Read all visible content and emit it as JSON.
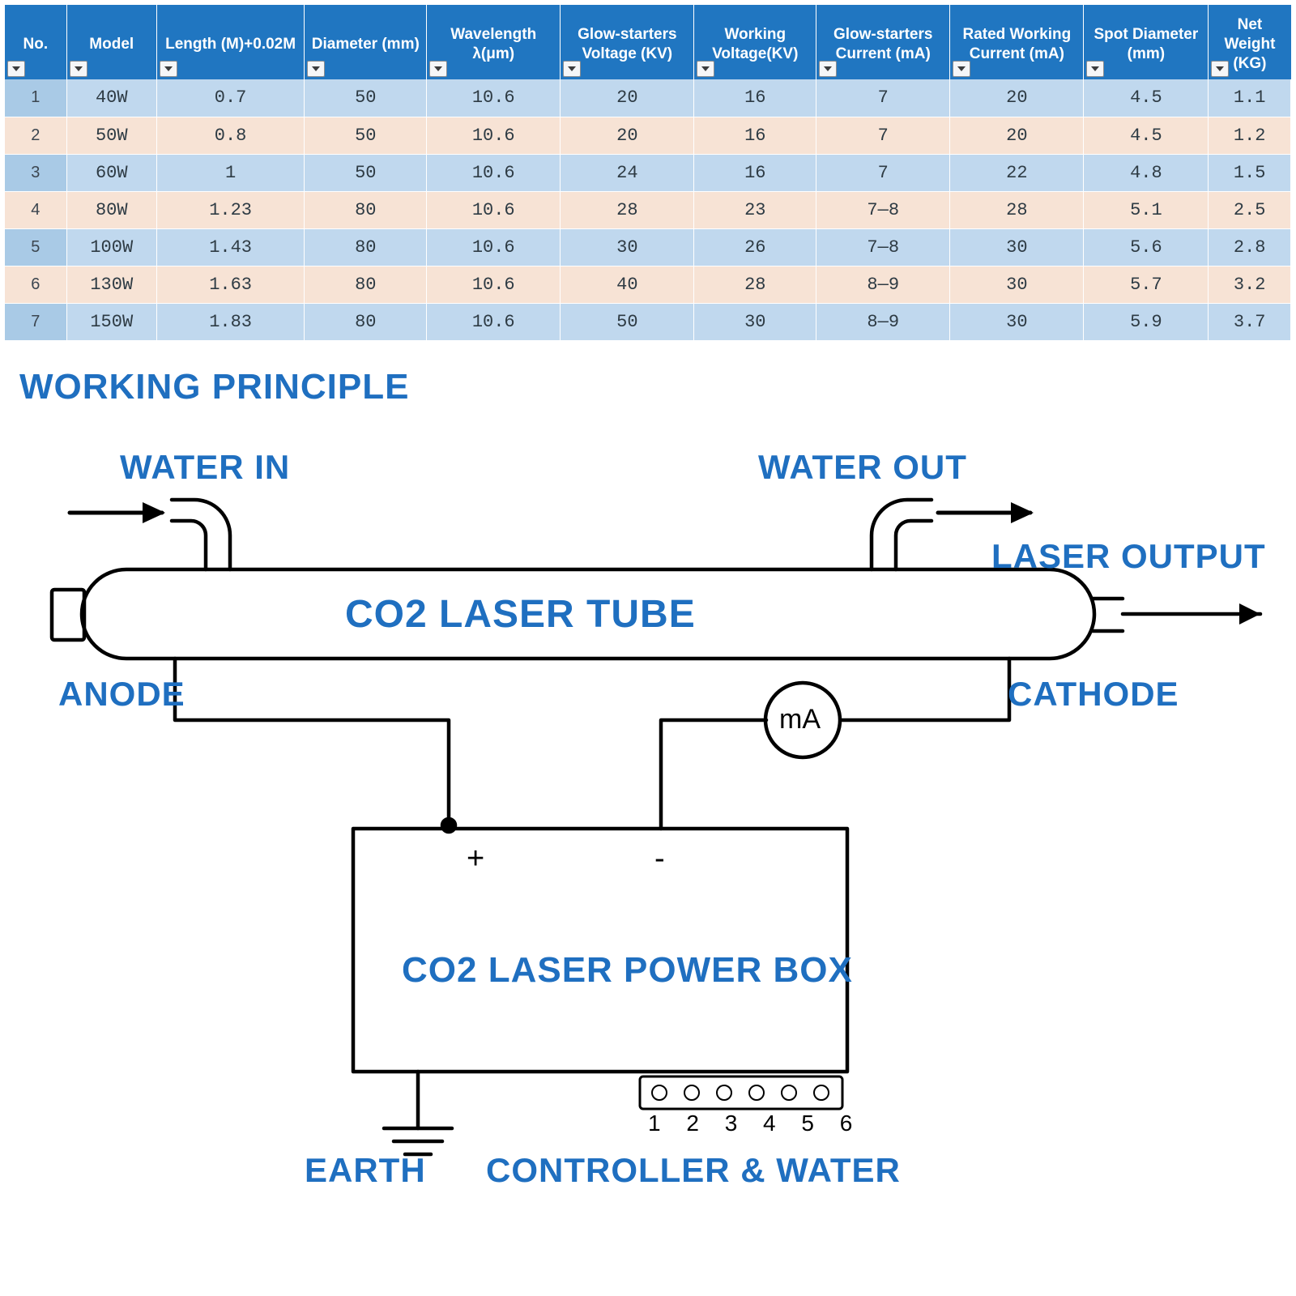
{
  "table": {
    "columns": [
      {
        "key": "no",
        "label": "No."
      },
      {
        "key": "model",
        "label": "Model"
      },
      {
        "key": "length",
        "label": "Length (M)+0.02M"
      },
      {
        "key": "diameter",
        "label": "Diameter (mm)"
      },
      {
        "key": "wavelength",
        "label": "Wavelength λ(μm)"
      },
      {
        "key": "glowv",
        "label": "Glow-starters Voltage (KV)"
      },
      {
        "key": "workv",
        "label": "Working Voltage(KV)"
      },
      {
        "key": "glowc",
        "label": "Glow-starters Current (mA)"
      },
      {
        "key": "ratedc",
        "label": "Rated Working Current (mA)"
      },
      {
        "key": "spot",
        "label": "Spot Diameter (mm)"
      },
      {
        "key": "weight",
        "label": "Net Weight (KG)"
      }
    ],
    "col_widths_pct": [
      4.8,
      7.0,
      11.5,
      9.5,
      10.4,
      10.4,
      9.5,
      10.4,
      10.4,
      9.7,
      6.4
    ],
    "header_bg": "#2076c1",
    "header_fg": "#ffffff",
    "row_blue_bg": "#c0d8ee",
    "row_blue_idx_bg": "#a9cae6",
    "row_pink_bg": "#f7e3d5",
    "rows": [
      {
        "no": "1",
        "model": "40W",
        "length": "0.7",
        "diameter": "50",
        "wavelength": "10.6",
        "glowv": "20",
        "workv": "16",
        "glowc": "7",
        "ratedc": "20",
        "spot": "4.5",
        "weight": "1.1"
      },
      {
        "no": "2",
        "model": "50W",
        "length": "0.8",
        "diameter": "50",
        "wavelength": "10.6",
        "glowv": "20",
        "workv": "16",
        "glowc": "7",
        "ratedc": "20",
        "spot": "4.5",
        "weight": "1.2"
      },
      {
        "no": "3",
        "model": "60W",
        "length": "1",
        "diameter": "50",
        "wavelength": "10.6",
        "glowv": "24",
        "workv": "16",
        "glowc": "7",
        "ratedc": "22",
        "spot": "4.8",
        "weight": "1.5"
      },
      {
        "no": "4",
        "model": "80W",
        "length": "1.23",
        "diameter": "80",
        "wavelength": "10.6",
        "glowv": "28",
        "workv": "23",
        "glowc": "7—8",
        "ratedc": "28",
        "spot": "5.1",
        "weight": "2.5"
      },
      {
        "no": "5",
        "model": "100W",
        "length": "1.43",
        "diameter": "80",
        "wavelength": "10.6",
        "glowv": "30",
        "workv": "26",
        "glowc": "7—8",
        "ratedc": "30",
        "spot": "5.6",
        "weight": "2.8"
      },
      {
        "no": "6",
        "model": "130W",
        "length": "1.63",
        "diameter": "80",
        "wavelength": "10.6",
        "glowv": "40",
        "workv": "28",
        "glowc": "8—9",
        "ratedc": "30",
        "spot": "5.7",
        "weight": "3.2"
      },
      {
        "no": "7",
        "model": "150W",
        "length": "1.83",
        "diameter": "80",
        "wavelength": "10.6",
        "glowv": "50",
        "workv": "30",
        "glowc": "8—9",
        "ratedc": "30",
        "spot": "5.9",
        "weight": "3.7"
      }
    ]
  },
  "section_title": "WORKING PRINCIPLE",
  "diagram": {
    "label_color": "#1f6fc0",
    "stroke": "#000000",
    "stroke_width": 4.5,
    "labels": {
      "water_in": "WATER IN",
      "water_out": "WATER OUT",
      "laser_output": "LASER OUTPUT",
      "tube": "CO2 LASER TUBE",
      "anode": "ANODE",
      "cathode": "CATHODE",
      "ma": "mA",
      "powerbox": "CO2 LASER POWER BOX",
      "earth": "EARTH",
      "controller": "CONTROLLER & WATER",
      "plus": "+",
      "minus": "-",
      "pins": "1 2 3 4 5 6"
    }
  }
}
